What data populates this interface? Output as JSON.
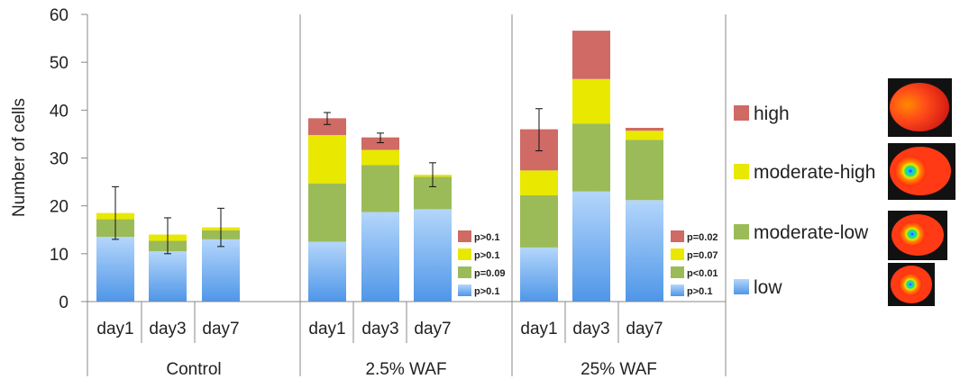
{
  "chart_data": {
    "type": "stacked-bar",
    "ylabel": "Number of cells",
    "ylim": [
      0,
      60
    ],
    "yticks": [
      0,
      10,
      20,
      30,
      40,
      50,
      60
    ],
    "groups": [
      {
        "name": "Control",
        "days": [
          "day1",
          "day3",
          "day7"
        ],
        "stack_totals": [
          18.5,
          14,
          15.5
        ],
        "error_low": [
          13,
          10,
          11.5
        ],
        "error_high": [
          24,
          17.5,
          19.5
        ],
        "pvalues": []
      },
      {
        "name": "2.5% WAF",
        "days": [
          "day1",
          "day3",
          "day7"
        ],
        "stack_totals": [
          38.3,
          34.3,
          26.5
        ],
        "error_low": [
          37,
          33.2,
          24
        ],
        "error_high": [
          39.5,
          35.2,
          29
        ],
        "pvalues": [
          "p>0.1",
          "p>0.1",
          "p=0.09",
          "p>0.1"
        ]
      },
      {
        "name": "25% WAF",
        "days": [
          "day1",
          "day3",
          "day7"
        ],
        "stack_totals": [
          36,
          56.6,
          36.3
        ],
        "error_low": [
          31.5,
          null,
          null
        ],
        "error_high": [
          40.3,
          null,
          null
        ],
        "pvalues": [
          "p=0.02",
          "p=0.07",
          "p<0.01",
          "p>0.1"
        ]
      }
    ],
    "series": [
      {
        "name": "low",
        "color": "#6aaaf0",
        "values": [
          13.5,
          10.5,
          13,
          12.5,
          18.7,
          19.3,
          11.3,
          23,
          21.2
        ]
      },
      {
        "name": "moderate-low",
        "color": "#9bbb59",
        "values": [
          3.7,
          2.2,
          1.9,
          12.2,
          9.8,
          6.8,
          10.9,
          14.2,
          12.6
        ]
      },
      {
        "name": "moderate-high",
        "color": "#e8e800",
        "values": [
          1.3,
          1.3,
          0.6,
          10.1,
          3.2,
          0.4,
          5.2,
          9.3,
          1.9
        ]
      },
      {
        "name": "high",
        "color": "#cf6a64",
        "values": [
          0,
          0,
          0,
          3.5,
          2.6,
          0,
          8.6,
          10.1,
          0.6
        ]
      }
    ],
    "legend_position": "right",
    "legend_order": [
      "high",
      "moderate-high",
      "moderate-low",
      "low"
    ]
  }
}
